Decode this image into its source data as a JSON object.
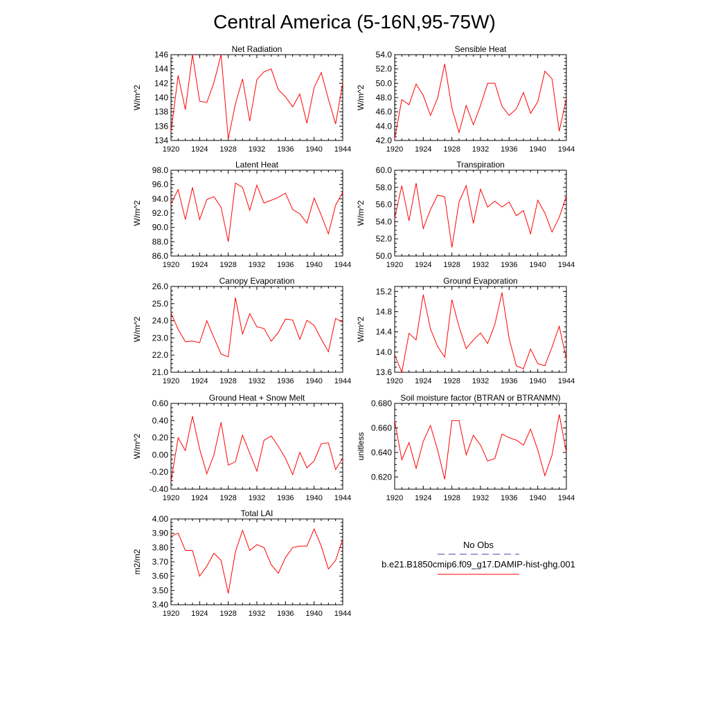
{
  "title": "Central America (5-16N,95-75W)",
  "line_color": "#ff0000",
  "obs_color": "#3f3fa6",
  "legend": {
    "obs_label": "No Obs",
    "model_label": "b.e21.B1850cmip6.f09_g17.DAMIP-hist-ghg.001"
  },
  "chart_data": [
    {
      "type": "line",
      "title": "Net Radiation",
      "ylabel": "W/m^2",
      "xlim": [
        1920,
        1944
      ],
      "ylim": [
        134,
        146
      ],
      "yticks": [
        "134",
        "136",
        "138",
        "140",
        "142",
        "144",
        "146"
      ],
      "xticks": [
        "1920",
        "1924",
        "1928",
        "1932",
        "1936",
        "1940",
        "1944"
      ],
      "x": [
        1920,
        1921,
        1922,
        1923,
        1924,
        1925,
        1926,
        1927,
        1928,
        1929,
        1930,
        1931,
        1932,
        1933,
        1934,
        1935,
        1936,
        1937,
        1938,
        1939,
        1940,
        1941,
        1942,
        1943,
        1944
      ],
      "values": [
        135.2,
        143.1,
        138.3,
        146.0,
        139.5,
        139.3,
        142.1,
        146.0,
        134.2,
        139.1,
        142.6,
        136.7,
        142.5,
        143.6,
        144.0,
        141.1,
        140.1,
        138.7,
        140.5,
        136.4,
        141.4,
        143.5,
        139.8,
        136.3,
        142.0
      ]
    },
    {
      "type": "line",
      "title": "Sensible Heat",
      "ylabel": "W/m^2",
      "xlim": [
        1920,
        1944
      ],
      "ylim": [
        42,
        54
      ],
      "yticks": [
        "42.0",
        "44.0",
        "46.0",
        "48.0",
        "50.0",
        "52.0",
        "54.0"
      ],
      "xticks": [
        "1920",
        "1924",
        "1928",
        "1932",
        "1936",
        "1940",
        "1944"
      ],
      "x": [
        1920,
        1921,
        1922,
        1923,
        1924,
        1925,
        1926,
        1927,
        1928,
        1929,
        1930,
        1931,
        1932,
        1933,
        1934,
        1935,
        1936,
        1937,
        1938,
        1939,
        1940,
        1941,
        1942,
        1943,
        1944
      ],
      "values": [
        42.2,
        47.7,
        47.0,
        49.9,
        48.3,
        45.5,
        47.9,
        52.7,
        46.5,
        43.1,
        46.9,
        44.2,
        46.9,
        50.0,
        50.0,
        46.8,
        45.5,
        46.4,
        48.7,
        45.8,
        47.4,
        51.7,
        50.6,
        43.3,
        47.9
      ]
    },
    {
      "type": "line",
      "title": "Latent Heat",
      "ylabel": "W/m^2",
      "xlim": [
        1920,
        1944
      ],
      "ylim": [
        86,
        98
      ],
      "yticks": [
        "86.0",
        "88.0",
        "90.0",
        "92.0",
        "94.0",
        "96.0",
        "98.0"
      ],
      "xticks": [
        "1920",
        "1924",
        "1928",
        "1932",
        "1936",
        "1940",
        "1944"
      ],
      "x": [
        1920,
        1921,
        1922,
        1923,
        1924,
        1925,
        1926,
        1927,
        1928,
        1929,
        1930,
        1931,
        1932,
        1933,
        1934,
        1935,
        1936,
        1937,
        1938,
        1939,
        1940,
        1941,
        1942,
        1943,
        1944
      ],
      "values": [
        93.3,
        95.3,
        91.1,
        95.6,
        91.1,
        93.9,
        94.3,
        92.8,
        88.0,
        96.2,
        95.6,
        92.4,
        95.9,
        93.4,
        93.8,
        94.2,
        94.8,
        92.5,
        91.9,
        90.6,
        94.1,
        91.7,
        89.1,
        93.1,
        94.9
      ]
    },
    {
      "type": "line",
      "title": "Transpiration",
      "ylabel": "W/m^2",
      "xlim": [
        1920,
        1944
      ],
      "ylim": [
        50,
        60
      ],
      "yticks": [
        "50.0",
        "52.0",
        "54.0",
        "56.0",
        "58.0",
        "60.0"
      ],
      "xticks": [
        "1920",
        "1924",
        "1928",
        "1932",
        "1936",
        "1940",
        "1944"
      ],
      "x": [
        1920,
        1921,
        1922,
        1923,
        1924,
        1925,
        1926,
        1927,
        1928,
        1929,
        1930,
        1931,
        1932,
        1933,
        1934,
        1935,
        1936,
        1937,
        1938,
        1939,
        1940,
        1941,
        1942,
        1943,
        1944
      ],
      "values": [
        54.4,
        58.2,
        54.1,
        58.5,
        53.2,
        55.4,
        57.1,
        56.9,
        51.0,
        56.3,
        58.2,
        53.8,
        57.8,
        55.7,
        56.4,
        55.7,
        56.3,
        54.7,
        55.3,
        52.6,
        56.5,
        55.0,
        52.8,
        54.5,
        57.0
      ]
    },
    {
      "type": "line",
      "title": "Canopy Evaporation",
      "ylabel": "W/m^2",
      "xlim": [
        1920,
        1944
      ],
      "ylim": [
        21,
        26
      ],
      "yticks": [
        "21.0",
        "22.0",
        "23.0",
        "24.0",
        "25.0",
        "26.0"
      ],
      "xticks": [
        "1920",
        "1924",
        "1928",
        "1932",
        "1936",
        "1940",
        "1944"
      ],
      "x": [
        1920,
        1921,
        1922,
        1923,
        1924,
        1925,
        1926,
        1927,
        1928,
        1929,
        1930,
        1931,
        1932,
        1933,
        1934,
        1935,
        1936,
        1937,
        1938,
        1939,
        1940,
        1941,
        1942,
        1943,
        1944
      ],
      "values": [
        24.45,
        23.5,
        22.78,
        22.82,
        22.72,
        24.0,
        23.02,
        22.06,
        21.9,
        25.35,
        23.22,
        24.42,
        23.65,
        23.55,
        22.81,
        23.32,
        24.1,
        24.05,
        22.92,
        24.03,
        23.72,
        22.93,
        22.2,
        24.14,
        23.9
      ]
    },
    {
      "type": "line",
      "title": "Ground Evaporation",
      "ylabel": "W/m^2",
      "xlim": [
        1920,
        1944
      ],
      "ylim": [
        13.6,
        15.3
      ],
      "yticks": [
        "13.6",
        "14.0",
        "14.4",
        "14.8",
        "15.2"
      ],
      "xticks": [
        "1920",
        "1924",
        "1928",
        "1932",
        "1936",
        "1940",
        "1944"
      ],
      "x": [
        1920,
        1921,
        1922,
        1923,
        1924,
        1925,
        1926,
        1927,
        1928,
        1929,
        1930,
        1931,
        1932,
        1933,
        1934,
        1935,
        1936,
        1937,
        1938,
        1939,
        1940,
        1941,
        1942,
        1943,
        1944
      ],
      "values": [
        13.95,
        13.6,
        14.37,
        14.24,
        15.14,
        14.46,
        14.11,
        13.9,
        15.04,
        14.5,
        14.07,
        14.24,
        14.38,
        14.17,
        14.55,
        15.18,
        14.27,
        13.73,
        13.67,
        14.06,
        13.77,
        13.73,
        14.1,
        14.51,
        13.86
      ]
    },
    {
      "type": "line",
      "title": "Ground Heat + Snow Melt",
      "ylabel": "W/m^2",
      "xlim": [
        1920,
        1944
      ],
      "ylim": [
        -0.4,
        0.6
      ],
      "yticks": [
        "-0.40",
        "-0.20",
        "0.00",
        "0.20",
        "0.40",
        "0.60"
      ],
      "xticks": [
        "1920",
        "1924",
        "1928",
        "1932",
        "1936",
        "1940",
        "1944"
      ],
      "x": [
        1920,
        1921,
        1922,
        1923,
        1924,
        1925,
        1926,
        1927,
        1928,
        1929,
        1930,
        1931,
        1932,
        1933,
        1934,
        1935,
        1936,
        1937,
        1938,
        1939,
        1940,
        1941,
        1942,
        1943,
        1944
      ],
      "values": [
        -0.31,
        0.2,
        0.05,
        0.45,
        0.07,
        -0.22,
        0.0,
        0.38,
        -0.12,
        -0.08,
        0.23,
        0.02,
        -0.19,
        0.17,
        0.22,
        0.1,
        -0.04,
        -0.23,
        0.03,
        -0.15,
        -0.07,
        0.13,
        0.14,
        -0.17,
        -0.04
      ]
    },
    {
      "type": "line",
      "title": "Soil moisture factor (BTRAN or BTRANMN)",
      "ylabel": "unitless",
      "xlim": [
        1920,
        1944
      ],
      "ylim": [
        0.61,
        0.68
      ],
      "yticks": [
        "0.620",
        "0.640",
        "0.660",
        "0.680"
      ],
      "xticks": [
        "1920",
        "1924",
        "1928",
        "1932",
        "1936",
        "1940",
        "1944"
      ],
      "x": [
        1920,
        1921,
        1922,
        1923,
        1924,
        1925,
        1926,
        1927,
        1928,
        1929,
        1930,
        1931,
        1932,
        1933,
        1934,
        1935,
        1936,
        1937,
        1938,
        1939,
        1940,
        1941,
        1942,
        1943,
        1944
      ],
      "values": [
        0.666,
        0.634,
        0.648,
        0.627,
        0.649,
        0.662,
        0.642,
        0.618,
        0.666,
        0.666,
        0.638,
        0.654,
        0.646,
        0.633,
        0.635,
        0.655,
        0.652,
        0.65,
        0.646,
        0.659,
        0.642,
        0.621,
        0.638,
        0.671,
        0.64
      ]
    },
    {
      "type": "line",
      "title": "Total LAI",
      "ylabel": "m2/m2",
      "xlim": [
        1920,
        1944
      ],
      "ylim": [
        3.4,
        4.0
      ],
      "yticks": [
        "3.40",
        "3.50",
        "3.60",
        "3.70",
        "3.80",
        "3.90",
        "4.00"
      ],
      "xticks": [
        "1920",
        "1924",
        "1928",
        "1932",
        "1936",
        "1940",
        "1944"
      ],
      "x": [
        1920,
        1921,
        1922,
        1923,
        1924,
        1925,
        1926,
        1927,
        1928,
        1929,
        1930,
        1931,
        1932,
        1933,
        1934,
        1935,
        1936,
        1937,
        1938,
        1939,
        1940,
        1941,
        1942,
        1943,
        1944
      ],
      "values": [
        3.88,
        3.9,
        3.78,
        3.78,
        3.6,
        3.67,
        3.76,
        3.71,
        3.48,
        3.77,
        3.92,
        3.78,
        3.82,
        3.8,
        3.68,
        3.62,
        3.73,
        3.8,
        3.81,
        3.81,
        3.93,
        3.81,
        3.65,
        3.71,
        3.86
      ]
    }
  ]
}
